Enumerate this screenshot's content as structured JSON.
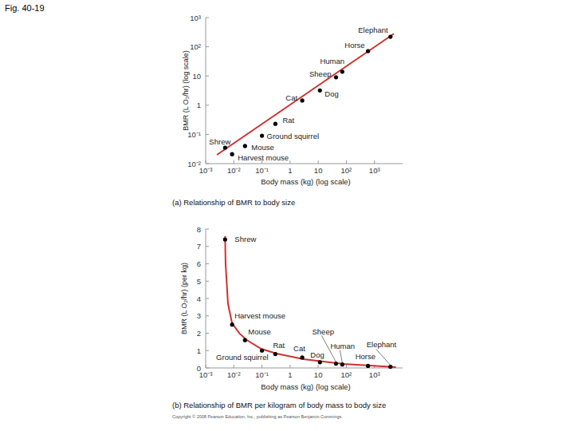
{
  "figure_label": "Fig. 40-19",
  "copyright": "Copyright © 2008 Pearson Education, Inc., publishing as Pearson Benjamin Cummings.",
  "chart_data": [
    {
      "type": "scatter",
      "title": "(a) Relationship of BMR to body size",
      "x_label": "Body mass (kg) (log scale)",
      "y_label": "BMR (L O₂/hr) (log scale)",
      "log": true,
      "xlim": [
        0.001,
        10000
      ],
      "ylim": [
        0.01,
        1000
      ],
      "xticks": [
        {
          "value": 0.001,
          "label": "10⁻³"
        },
        {
          "value": 0.01,
          "label": "10⁻²"
        },
        {
          "value": 0.1,
          "label": "10⁻¹"
        },
        1,
        10,
        {
          "value": 100,
          "label": "10²"
        },
        {
          "value": 1000,
          "label": "10³"
        }
      ],
      "yticks": [
        {
          "value": 0.01,
          "label": "10⁻²"
        },
        {
          "value": 0.1,
          "label": "10⁻¹"
        },
        1,
        10,
        {
          "value": 100,
          "label": "10²"
        },
        {
          "value": 1000,
          "label": "10³"
        }
      ],
      "series": [
        {
          "type": "line",
          "color": "#d0312d",
          "x": [
            0.0025,
            4900
          ],
          "values": [
            0.02,
            280
          ]
        },
        {
          "type": "scatter",
          "color": "#000000",
          "marker": "circle",
          "labels": [
            "Shrew",
            "Harvest mouse",
            "Mouse",
            "Ground squirrel",
            "Rat",
            "Cat",
            "Dog",
            "Sheep",
            "Human",
            "Horse",
            "Elephant"
          ],
          "x": [
            0.0049,
            0.0087,
            0.025,
            0.1,
            0.3,
            2.7,
            11.5,
            43,
            72,
            590,
            3700
          ],
          "values": [
            0.035,
            0.021,
            0.04,
            0.09,
            0.23,
            1.45,
            3.2,
            9,
            14,
            71,
            220
          ]
        }
      ]
    },
    {
      "type": "scatter",
      "title": "(b) Relationship of BMR per kilogram of body mass to body size",
      "x_label": "Body mass (kg) (log scale)",
      "y_label": "BMR (L O₂/hr) (per kg)",
      "log": "x",
      "xlim": [
        0.001,
        10000
      ],
      "ylim": [
        0,
        8
      ],
      "xticks": [
        {
          "value": 0.001,
          "label": "10⁻³"
        },
        {
          "value": 0.01,
          "label": "10⁻²"
        },
        {
          "value": 0.1,
          "label": "10⁻¹"
        },
        1,
        10,
        {
          "value": 100,
          "label": "10²"
        },
        {
          "value": 1000,
          "label": "10³"
        }
      ],
      "yticks": [
        0,
        1,
        2,
        3,
        4,
        5,
        6,
        7,
        8
      ],
      "series": [
        {
          "type": "line",
          "color": "#d0312d",
          "x": [
            0.0049,
            0.0051,
            0.0062,
            0.0087,
            0.016,
            0.029,
            0.094,
            0.33,
            3.0,
            80,
            5800
          ],
          "values": [
            7.6,
            6.0,
            3.7,
            2.57,
            1.98,
            1.61,
            1.1,
            0.83,
            0.51,
            0.23,
            0.05
          ]
        },
        {
          "type": "scatter",
          "color": "#000000",
          "marker": "circle",
          "labels": [
            "Shrew",
            "Harvest mouse",
            "Mouse",
            "Ground squirrel",
            "Rat",
            "Cat",
            "Dog",
            "Sheep",
            "Human",
            "Horse",
            "Elephant"
          ],
          "x": [
            0.0049,
            0.0087,
            0.025,
            0.1,
            0.3,
            2.7,
            11.5,
            43,
            72,
            590,
            3700
          ],
          "values": [
            7.4,
            2.5,
            1.6,
            1.0,
            0.8,
            0.6,
            0.33,
            0.25,
            0.2,
            0.12,
            0.07
          ]
        }
      ]
    }
  ]
}
